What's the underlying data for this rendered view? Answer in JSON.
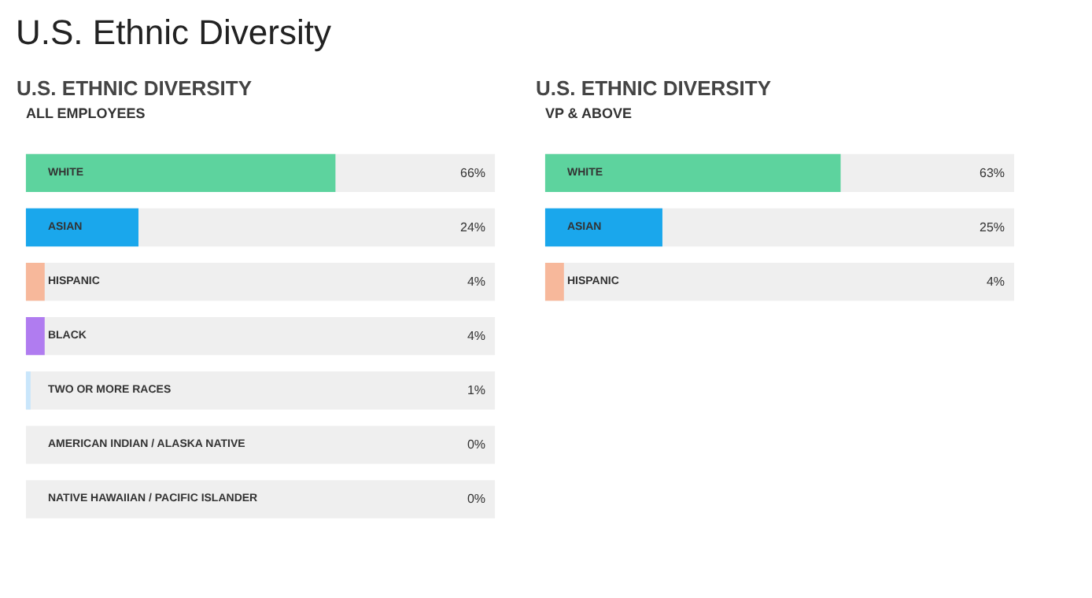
{
  "chart_data": [
    {
      "type": "bar",
      "orientation": "horizontal",
      "title": "U.S. ETHNIC DIVERSITY",
      "subtitle": "ALL EMPLOYEES",
      "annotations": [
        "U.S. Ethnic Diversity"
      ],
      "categories": [
        "WHITE",
        "ASIAN",
        "HISPANIC",
        "BLACK",
        "TWO OR MORE RACES",
        "AMERICAN INDIAN / ALASKA NATIVE",
        "NATIVE HAWAIIAN / PACIFIC ISLANDER"
      ],
      "values": [
        66,
        24,
        4,
        4,
        1,
        0,
        0
      ],
      "value_labels": [
        "66%",
        "24%",
        "4%",
        "4%",
        "1%",
        "0%",
        "0%"
      ],
      "colors": [
        "#5dd39e",
        "#1aa7ec",
        "#f7b89b",
        "#b07cf0",
        "#c9e6fb",
        "#eeeeee",
        "#eeeeee"
      ],
      "xlim": [
        0,
        100
      ],
      "tick_labels": false
    },
    {
      "type": "bar",
      "orientation": "horizontal",
      "title": "U.S. ETHNIC DIVERSITY",
      "subtitle": "VP & ABOVE",
      "categories": [
        "WHITE",
        "ASIAN",
        "HISPANIC"
      ],
      "values": [
        63,
        25,
        4
      ],
      "value_labels": [
        "63%",
        "25%",
        "4%"
      ],
      "colors": [
        "#5dd39e",
        "#1aa7ec",
        "#f7b89b"
      ],
      "xlim": [
        0,
        100
      ],
      "tick_labels": false
    }
  ]
}
